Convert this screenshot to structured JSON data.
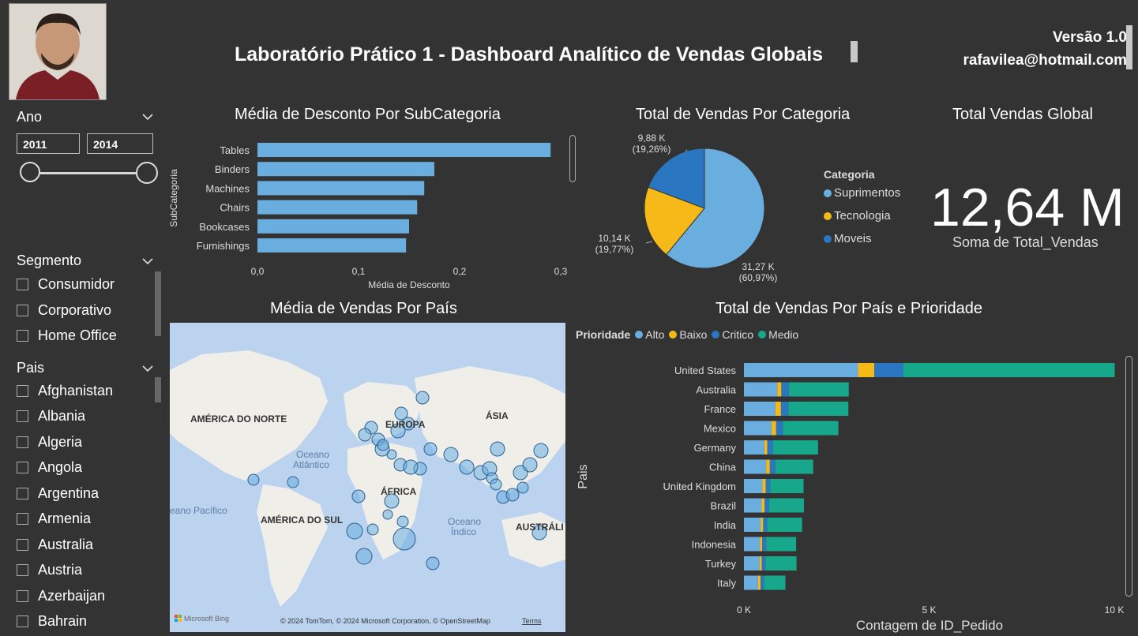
{
  "header": {
    "title": "Laboratório Prático 1 - Dashboard Analítico de Vendas Globais",
    "version": "Versão 1.0",
    "email": "rafavilea@hotmail.com"
  },
  "filters": {
    "year": {
      "label": "Ano",
      "from": "2011",
      "to": "2014"
    },
    "segment": {
      "label": "Segmento",
      "items": [
        "Consumidor",
        "Corporativo",
        "Home Office"
      ]
    },
    "country": {
      "label": "Pais",
      "items": [
        "Afghanistan",
        "Albania",
        "Algeria",
        "Angola",
        "Argentina",
        "Armenia",
        "Australia",
        "Austria",
        "Azerbaijan",
        "Bahrain"
      ]
    }
  },
  "discount_chart": {
    "title": "Média de Desconto Por SubCategoria",
    "xlabel": "Média de Desconto",
    "ylabel": "SubCategoria",
    "ticks": [
      "0,0",
      "0,1",
      "0,2",
      "0,3"
    ],
    "chart_data": {
      "type": "bar",
      "categories": [
        "Tables",
        "Binders",
        "Machines",
        "Chairs",
        "Bookcases",
        "Furnishings"
      ],
      "values": [
        0.29,
        0.175,
        0.165,
        0.158,
        0.15,
        0.147
      ],
      "xlim": [
        0,
        0.3
      ]
    }
  },
  "pie_chart": {
    "title": "Total de Vendas Por Categoria",
    "legend_title": "Categoria",
    "labels": [
      {
        "value": "31,27 K",
        "pct": "(60,97%)"
      },
      {
        "value": "10,14 K",
        "pct": "(19,77%)"
      },
      {
        "value": "9,88 K",
        "pct": "(19,26%)"
      }
    ],
    "chart_data": {
      "type": "pie",
      "slices": [
        {
          "name": "Suprimentos",
          "value": 31270,
          "color": "#6aaee0"
        },
        {
          "name": "Tecnologia",
          "value": 10140,
          "color": "#f5b918"
        },
        {
          "name": "Moveis",
          "value": 9880,
          "color": "#2a76c0"
        }
      ]
    }
  },
  "kpi": {
    "title": "Total Vendas Global",
    "value": "12,64 M",
    "label": "Soma de Total_Vendas"
  },
  "map": {
    "title": "Média de Vendas Por País",
    "labels": {
      "na": "AMÉRICA DO NORTE",
      "sa": "AMÉRICA DO SUL",
      "eu": "EUROPA",
      "af": "ÁFRICA",
      "as": "ÁSIA",
      "au": "AUSTRÁLI",
      "atl1": "Oceano",
      "atl2": "Atlântico",
      "pac": "eano Pacífico",
      "ind1": "Oceano",
      "ind2": "Índico"
    },
    "brand": "Microsoft Bing",
    "copyright": "© 2024 TomTom, © 2024 Microsoft Corporation, © OpenStreetMap",
    "terms": "Terms"
  },
  "priority_chart": {
    "title": "Total de Vendas Por País e Prioridade",
    "legend_title": "Prioridade",
    "xlabel": "Contagem de ID_Pedido",
    "ylabel": "Pais",
    "ticks": [
      "0 K",
      "5 K",
      "10 K"
    ],
    "chart_data": {
      "type": "bar",
      "stacked": true,
      "xlim": [
        0,
        10000
      ],
      "categories": [
        "United States",
        "Australia",
        "France",
        "Mexico",
        "Germany",
        "China",
        "United Kingdom",
        "Brazil",
        "India",
        "Indonesia",
        "Turkey",
        "Italy"
      ],
      "series": [
        {
          "name": "Alto",
          "color": "#6aaee0",
          "values": [
            3080,
            900,
            850,
            750,
            550,
            600,
            500,
            480,
            450,
            430,
            420,
            380
          ]
        },
        {
          "name": "Baixo",
          "color": "#f5b918",
          "values": [
            440,
            110,
            150,
            120,
            80,
            100,
            90,
            80,
            70,
            60,
            60,
            70
          ]
        },
        {
          "name": "Critico",
          "color": "#2a76c0",
          "values": [
            780,
            200,
            200,
            180,
            150,
            150,
            120,
            120,
            110,
            110,
            100,
            90
          ]
        },
        {
          "name": "Medio",
          "color": "#17a88b",
          "values": [
            5710,
            1620,
            1620,
            1500,
            1220,
            1020,
            900,
            940,
            940,
            810,
            840,
            580
          ]
        }
      ]
    }
  }
}
